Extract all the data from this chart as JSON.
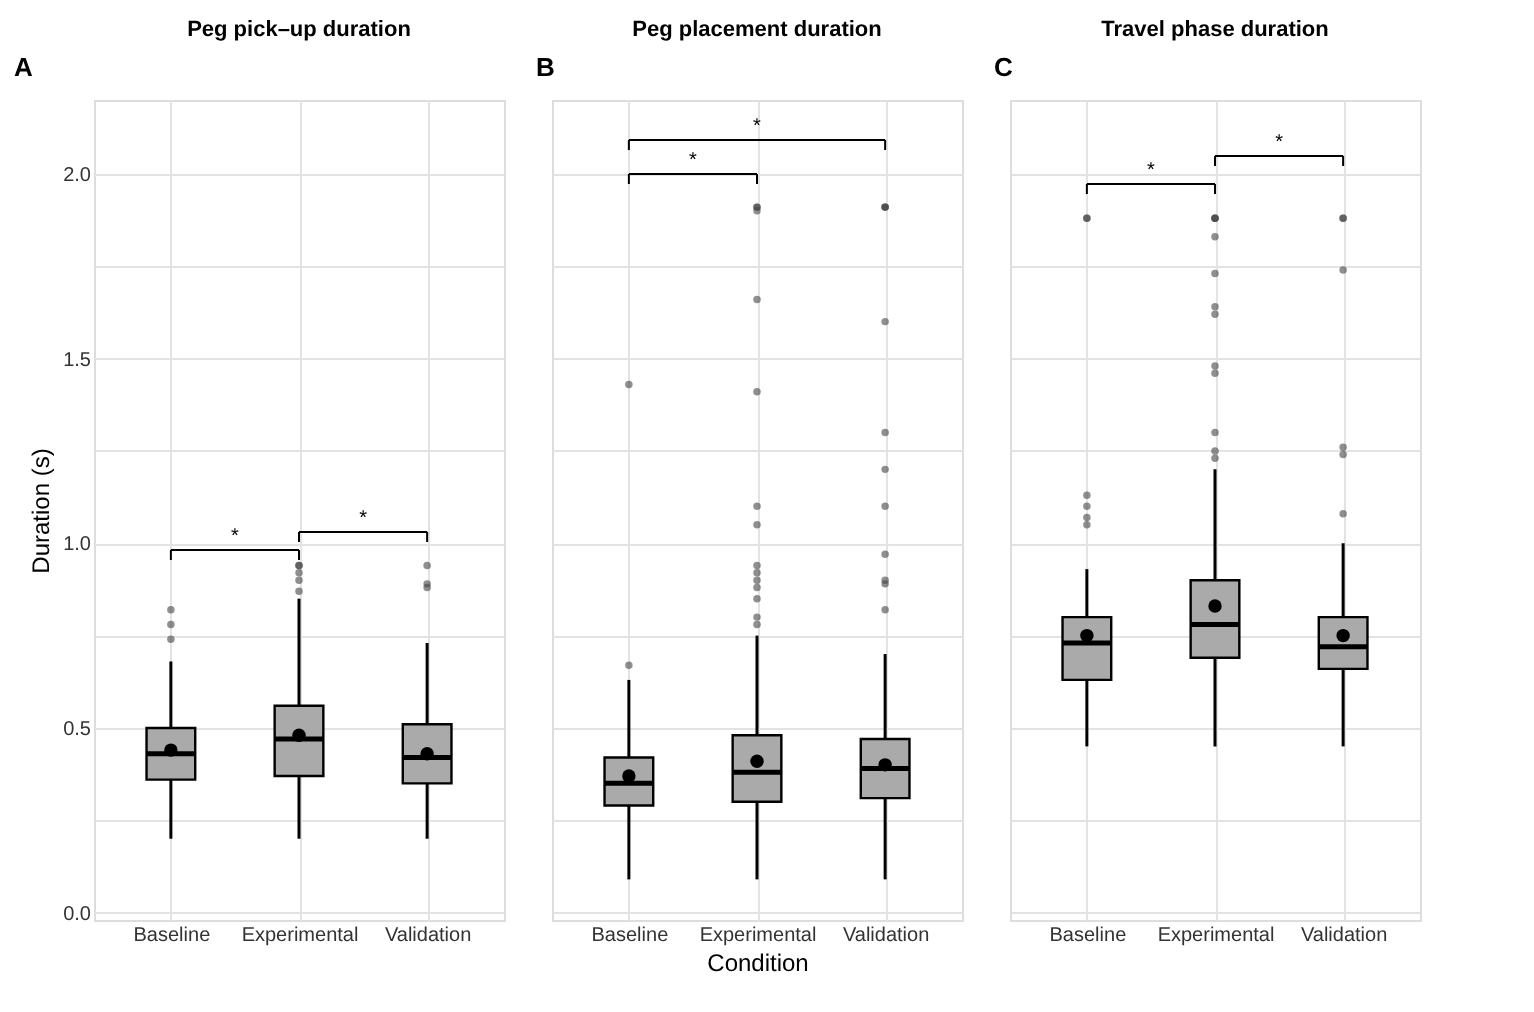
{
  "chart_data": [
    {
      "type": "box",
      "title": "Peg pick–up duration",
      "ylabel": "Duration (s)",
      "categories": [
        "Baseline",
        "Experimental",
        "Validation"
      ],
      "color": "#aaaaaa",
      "boxes": [
        {
          "low": 0.2,
          "q1": 0.36,
          "median": 0.43,
          "q3": 0.5,
          "high": 0.68,
          "mean": 0.44,
          "outliers": [
            0.82,
            0.78,
            0.74
          ]
        },
        {
          "low": 0.2,
          "q1": 0.37,
          "median": 0.47,
          "q3": 0.56,
          "high": 0.85,
          "mean": 0.48,
          "outliers": [
            0.94,
            0.94,
            0.92,
            0.9,
            0.87
          ]
        },
        {
          "low": 0.2,
          "q1": 0.35,
          "median": 0.42,
          "q3": 0.51,
          "high": 0.73,
          "mean": 0.43,
          "outliers": [
            0.94,
            0.89,
            0.88
          ]
        }
      ],
      "ylim": [
        -0.02,
        2.2
      ],
      "yticks": [
        {
          "value": 0,
          "label": "0.0"
        },
        {
          "value": 0.25,
          "label": null
        },
        0.5,
        {
          "value": 0.75,
          "label": null
        },
        {
          "value": 1,
          "label": "1.0"
        },
        {
          "value": 1.25,
          "label": null
        },
        1.5,
        {
          "value": 1.75,
          "label": null
        },
        {
          "value": 2,
          "label": "2.0"
        }
      ],
      "grid": true,
      "annotations": [
        "A",
        "*",
        "*"
      ]
    },
    {
      "type": "box",
      "title": "Peg placement duration",
      "xlabel": "Condition",
      "categories": [
        "Baseline",
        "Experimental",
        "Validation"
      ],
      "color": "#aaaaaa",
      "boxes": [
        {
          "low": 0.09,
          "q1": 0.29,
          "median": 0.35,
          "q3": 0.42,
          "high": 0.63,
          "mean": 0.37,
          "outliers": [
            1.43,
            0.67
          ]
        },
        {
          "low": 0.09,
          "q1": 0.3,
          "median": 0.38,
          "q3": 0.48,
          "high": 0.75,
          "mean": 0.41,
          "outliers": [
            1.91,
            1.91,
            1.9,
            1.66,
            1.41,
            1.1,
            1.05,
            0.94,
            0.92,
            0.9,
            0.88,
            0.85,
            0.8,
            0.78
          ]
        },
        {
          "low": 0.09,
          "q1": 0.31,
          "median": 0.39,
          "q3": 0.47,
          "high": 0.7,
          "mean": 0.4,
          "outliers": [
            1.91,
            1.91,
            1.91,
            1.6,
            1.3,
            1.2,
            1.1,
            0.97,
            0.9,
            0.89,
            0.82
          ]
        }
      ],
      "ylim": [
        -0.02,
        2.2
      ],
      "yticks": [
        0,
        0.25,
        0.5,
        0.75,
        1,
        1.25,
        1.5,
        1.75,
        2
      ],
      "grid": true,
      "tick_labels": "x",
      "annotations": [
        "B",
        "*",
        "*"
      ]
    },
    {
      "type": "box",
      "title": "Travel phase duration",
      "categories": [
        "Baseline",
        "Experimental",
        "Validation"
      ],
      "color": "#aaaaaa",
      "boxes": [
        {
          "low": 0.45,
          "q1": 0.63,
          "median": 0.73,
          "q3": 0.8,
          "high": 0.93,
          "mean": 0.75,
          "outliers": [
            1.88,
            1.88,
            1.13,
            1.1,
            1.07,
            1.05
          ]
        },
        {
          "low": 0.45,
          "q1": 0.69,
          "median": 0.78,
          "q3": 0.9,
          "high": 1.2,
          "mean": 0.83,
          "outliers": [
            1.88,
            1.88,
            1.88,
            1.83,
            1.73,
            1.64,
            1.62,
            1.48,
            1.46,
            1.3,
            1.25,
            1.23
          ]
        },
        {
          "low": 0.45,
          "q1": 0.66,
          "median": 0.72,
          "q3": 0.8,
          "high": 1.0,
          "mean": 0.75,
          "outliers": [
            1.88,
            1.88,
            1.74,
            1.26,
            1.24,
            1.08
          ]
        }
      ],
      "ylim": [
        -0.02,
        2.2
      ],
      "yticks": [
        0,
        0.25,
        0.5,
        0.75,
        1,
        1.25,
        1.5,
        1.75,
        2
      ],
      "grid": true,
      "tick_labels": "x",
      "annotations": [
        "C",
        "*",
        "*"
      ]
    }
  ]
}
